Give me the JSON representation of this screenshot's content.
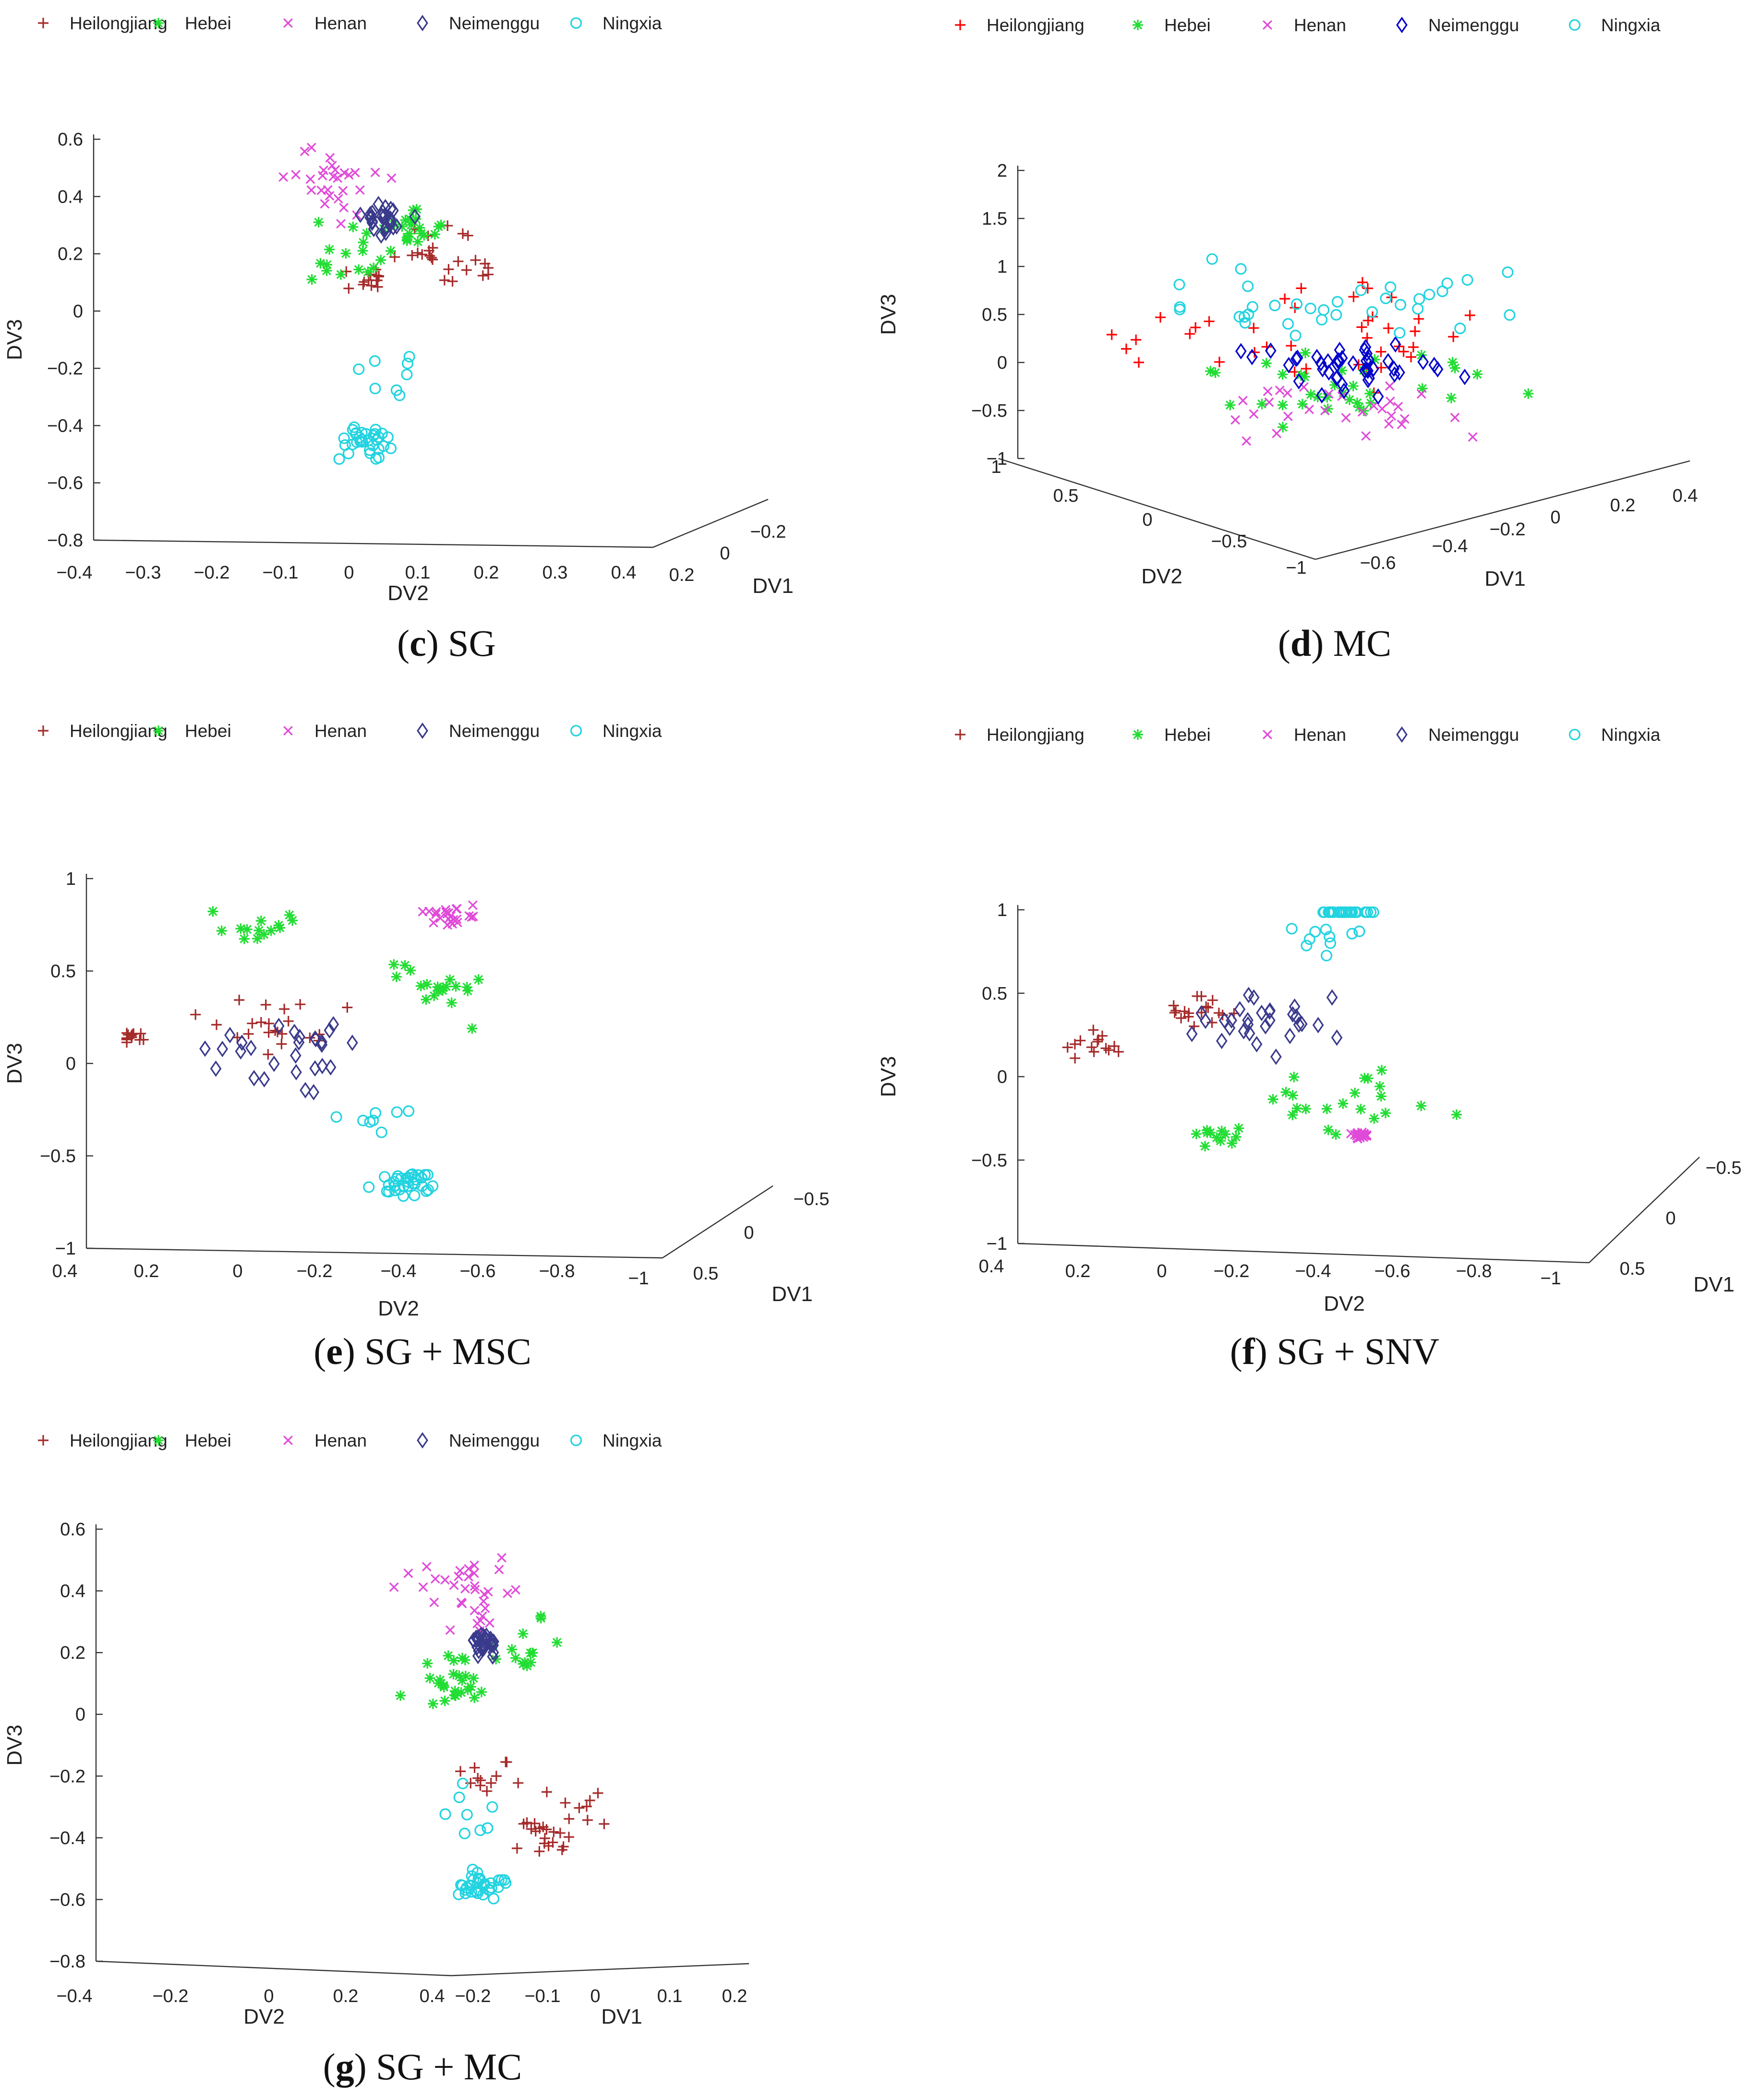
{
  "legend": {
    "labels": [
      "Heilongjiang",
      "Hebei",
      "Henan",
      "Neimenggu",
      "Ningxia"
    ]
  },
  "colors": {
    "heilongjiang_dark": "#a52a2a",
    "heilongjiang_bright": "#ff0000",
    "hebei": "#22dd33",
    "henan": "#e04ad8",
    "neimenggu_dark": "#3a3a8c",
    "neimenggu_bright": "#0000cc",
    "ningxia": "#22d3e0"
  },
  "chart_data": [
    {
      "panel": "c",
      "caption_letter": "c",
      "caption_text": "SG",
      "type": "scatter",
      "axis_titles": {
        "x": "DV2",
        "y": "DV1",
        "z": "DV3"
      },
      "z_ticks": [
        "0.6",
        "0.4",
        "0.2",
        "0",
        "−0.2",
        "−0.4",
        "−0.6",
        "−0.8"
      ],
      "x_ticks": [
        "−0.4",
        "−0.3",
        "−0.2",
        "−0.1",
        "0",
        "0.1",
        "0.2",
        "0.3",
        "0.4"
      ],
      "y_ticks": [
        "0.2",
        "0",
        "−0.2"
      ],
      "series_clusters": [
        {
          "label": "Heilongjiang",
          "marker": "plus",
          "color": "heilongjiang_dark",
          "clusters": [
            [
              -0.05,
              -0.02,
              0.1,
              0.05,
              14
            ],
            [
              0.12,
              0.02,
              0.22,
              0.08,
              12
            ],
            [
              0.3,
              0.05,
              0.16,
              0.06,
              12
            ]
          ]
        },
        {
          "label": "Hebei",
          "marker": "star",
          "color": "hebei",
          "clusters": [
            [
              -0.15,
              0.0,
              0.2,
              0.1,
              18
            ],
            [
              0.1,
              0.0,
              0.3,
              0.05,
              20
            ]
          ]
        },
        {
          "label": "Henan",
          "marker": "x",
          "color": "henan",
          "clusters": [
            [
              -0.2,
              0.0,
              0.45,
              0.1,
              28
            ]
          ]
        },
        {
          "label": "Neimenggu",
          "marker": "diamond",
          "color": "neimenggu_dark",
          "clusters": [
            [
              0.0,
              0.0,
              0.32,
              0.05,
              28
            ]
          ]
        },
        {
          "label": "Ningxia",
          "marker": "circle",
          "color": "ningxia",
          "clusters": [
            [
              -0.08,
              0.0,
              -0.45,
              0.05,
              32
            ],
            [
              -0.02,
              0.0,
              -0.25,
              0.08,
              8
            ]
          ]
        }
      ]
    },
    {
      "panel": "d",
      "caption_letter": "d",
      "caption_text": "MC",
      "type": "scatter",
      "axis_titles": {
        "x": "DV2",
        "y": "DV1",
        "z": "DV3"
      },
      "z_ticks": [
        "2",
        "1.5",
        "1",
        "0.5",
        "0",
        "−0.5",
        "−1"
      ],
      "x_ticks": [
        "1",
        "0.5",
        "0",
        "−0.5",
        "−1"
      ],
      "y_ticks": [
        "−0.6",
        "−0.4",
        "−0.2",
        "0",
        "0.2",
        "0.4"
      ],
      "series_clusters": [
        {
          "label": "Heilongjiang",
          "marker": "plus",
          "color": "heilongjiang_bright",
          "clusters": [
            [
              0.0,
              0.0,
              0.3,
              0.45,
              40
            ]
          ]
        },
        {
          "label": "Hebei",
          "marker": "star",
          "color": "hebei",
          "clusters": [
            [
              0.0,
              0.0,
              -0.3,
              0.3,
              35
            ]
          ]
        },
        {
          "label": "Henan",
          "marker": "x",
          "color": "henan",
          "clusters": [
            [
              0.0,
              0.0,
              -0.45,
              0.25,
              30
            ]
          ]
        },
        {
          "label": "Neimenggu",
          "marker": "diamond",
          "color": "neimenggu_bright",
          "clusters": [
            [
              0.0,
              0.0,
              -0.05,
              0.2,
              45
            ]
          ]
        },
        {
          "label": "Ningxia",
          "marker": "circle",
          "color": "ningxia",
          "clusters": [
            [
              0.0,
              0.0,
              0.55,
              0.3,
              35
            ]
          ]
        }
      ]
    },
    {
      "panel": "e",
      "caption_letter": "e",
      "caption_text": "SG + MSC",
      "type": "scatter",
      "axis_titles": {
        "x": "DV2",
        "y": "DV1",
        "z": "DV3"
      },
      "z_ticks": [
        "1",
        "0.5",
        "0",
        "−0.5",
        "−1"
      ],
      "x_ticks": [
        "0.4",
        "0.2",
        "0",
        "−0.2",
        "−0.4",
        "−0.6",
        "−0.8",
        "−1"
      ],
      "y_ticks": [
        "0.5",
        "0",
        "−0.5"
      ],
      "series_clusters": [
        {
          "label": "Heilongjiang",
          "marker": "plus",
          "color": "heilongjiang_dark",
          "clusters": [
            [
              -0.5,
              0.0,
              0.2,
              0.12,
              22
            ],
            [
              -0.95,
              0.0,
              0.15,
              0.03,
              12
            ]
          ]
        },
        {
          "label": "Hebei",
          "marker": "star",
          "color": "hebei",
          "clusters": [
            [
              0.1,
              0.0,
              0.4,
              0.1,
              20
            ],
            [
              -0.5,
              0.0,
              0.72,
              0.08,
              14
            ]
          ]
        },
        {
          "label": "Henan",
          "marker": "x",
          "color": "henan",
          "clusters": [
            [
              0.15,
              0.0,
              0.8,
              0.05,
              24
            ]
          ]
        },
        {
          "label": "Neimenggu",
          "marker": "diamond",
          "color": "neimenggu_dark",
          "clusters": [
            [
              -0.35,
              0.0,
              0.05,
              0.15,
              28
            ]
          ]
        },
        {
          "label": "Ningxia",
          "marker": "circle",
          "color": "ningxia",
          "clusters": [
            [
              0.0,
              0.0,
              -0.65,
              0.06,
              34
            ],
            [
              -0.1,
              0.0,
              -0.3,
              0.06,
              8
            ]
          ]
        }
      ]
    },
    {
      "panel": "f",
      "caption_letter": "f",
      "caption_text": "SG + SNV",
      "type": "scatter",
      "axis_titles": {
        "x": "DV2",
        "y": "DV1",
        "z": "DV3"
      },
      "z_ticks": [
        "1",
        "0.5",
        "0",
        "−0.5",
        "−1"
      ],
      "x_ticks": [
        "0.4",
        "0.2",
        "0",
        "−0.2",
        "−0.4",
        "−0.6",
        "−0.8",
        "−1"
      ],
      "y_ticks": [
        "0.5",
        "0",
        "−0.5"
      ],
      "series_clusters": [
        {
          "label": "Heilongjiang",
          "marker": "plus",
          "color": "heilongjiang_dark",
          "clusters": [
            [
              -0.5,
              0.0,
              0.4,
              0.06,
              18
            ],
            [
              -0.85,
              0.0,
              0.18,
              0.05,
              14
            ]
          ]
        },
        {
          "label": "Hebei",
          "marker": "star",
          "color": "hebei",
          "clusters": [
            [
              0.0,
              0.0,
              -0.15,
              0.15,
              22
            ],
            [
              -0.4,
              0.0,
              -0.35,
              0.07,
              12
            ]
          ]
        },
        {
          "label": "Henan",
          "marker": "x",
          "color": "henan",
          "clusters": [
            [
              0.05,
              0.0,
              -0.35,
              0.02,
              22
            ]
          ]
        },
        {
          "label": "Neimenggu",
          "marker": "diamond",
          "color": "neimenggu_dark",
          "clusters": [
            [
              -0.3,
              0.0,
              0.35,
              0.15,
              30
            ]
          ]
        },
        {
          "label": "Ningxia",
          "marker": "circle",
          "color": "ningxia",
          "clusters": [
            [
              0.0,
              0.0,
              1.1,
              0.05,
              30
            ],
            [
              -0.05,
              0.0,
              0.85,
              0.08,
              10
            ]
          ]
        }
      ]
    },
    {
      "panel": "g",
      "caption_letter": "g",
      "caption_text": "SG + MC",
      "type": "scatter",
      "axis_titles": {
        "x": "DV2",
        "y": "DV1",
        "z": "DV3"
      },
      "z_ticks": [
        "0.6",
        "0.4",
        "0.2",
        "0",
        "−0.2",
        "−0.4",
        "−0.6",
        "−0.8"
      ],
      "x_ticks": [
        "−0.4",
        "−0.2",
        "0",
        "0.2",
        "0.4"
      ],
      "y_ticks": [
        "−0.2",
        "−0.1",
        "0",
        "0.1",
        "0.2"
      ],
      "series_clusters": [
        {
          "label": "Heilongjiang",
          "marker": "plus",
          "color": "heilongjiang_dark",
          "clusters": [
            [
              0.15,
              0.0,
              -0.2,
              0.05,
              12
            ],
            [
              0.35,
              0.0,
              -0.4,
              0.05,
              18
            ],
            [
              0.45,
              0.0,
              -0.3,
              0.08,
              10
            ]
          ]
        },
        {
          "label": "Hebei",
          "marker": "star",
          "color": "hebei",
          "clusters": [
            [
              0.05,
              0.0,
              0.1,
              0.08,
              26
            ],
            [
              0.3,
              0.0,
              0.22,
              0.06,
              14
            ]
          ]
        },
        {
          "label": "Henan",
          "marker": "x",
          "color": "henan",
          "clusters": [
            [
              0.1,
              0.0,
              0.4,
              0.1,
              34
            ]
          ]
        },
        {
          "label": "Neimenggu",
          "marker": "diamond",
          "color": "neimenggu_dark",
          "clusters": [
            [
              0.15,
              0.0,
              0.23,
              0.03,
              28
            ]
          ]
        },
        {
          "label": "Ningxia",
          "marker": "circle",
          "color": "ningxia",
          "clusters": [
            [
              0.15,
              0.0,
              -0.55,
              0.04,
              34
            ],
            [
              0.15,
              0.0,
              -0.3,
              0.08,
              8
            ]
          ]
        }
      ]
    }
  ]
}
